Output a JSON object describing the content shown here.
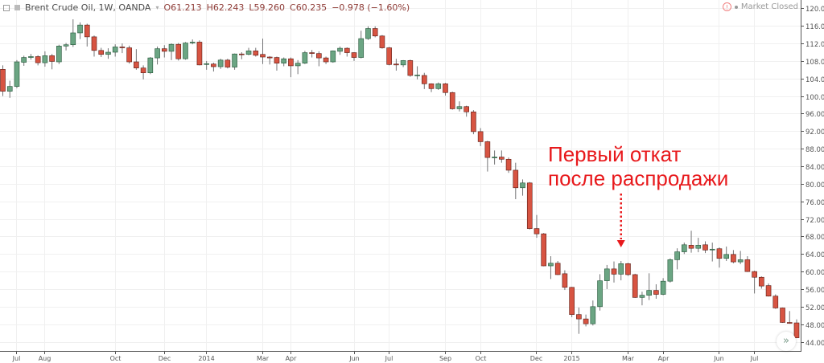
{
  "header": {
    "symbol": "Brent Crude Oil, 1W, OANDA",
    "open": "O61.213",
    "high": "H62.243",
    "low": "L59.260",
    "close": "C60.235",
    "change": "−0.978 (−1.60%)"
  },
  "status": {
    "text": "Market Closed",
    "icon": "warning-icon"
  },
  "annotation": {
    "line1": "Первый откат",
    "line2": "после распродажи",
    "color": "#e8191c"
  },
  "scroll_button": {
    "icon": "double-chevron-right-icon",
    "glyph": "»"
  },
  "colors": {
    "up": "#6ba583",
    "up_border": "#225437",
    "down": "#d75442",
    "down_border": "#5b1a13",
    "wick": "#737375",
    "grid": "#f0f0f0"
  },
  "chart_data": {
    "type": "candlestick",
    "interval": "1W",
    "ylim": [
      41.9,
      121.9
    ],
    "yticks": [
      "44.000",
      "48.000",
      "52.000",
      "56.000",
      "60.000",
      "64.000",
      "68.000",
      "72.000",
      "76.000",
      "80.000",
      "84.000",
      "88.000",
      "92.000",
      "96.000",
      "100.000",
      "104.000",
      "108.000",
      "112.000",
      "116.000",
      "120.000"
    ],
    "xticks": [
      {
        "label": "Jul",
        "date": "2013-07-01"
      },
      {
        "label": "Aug",
        "date": "2013-07-29"
      },
      {
        "label": "Oct",
        "date": "2013-10-07"
      },
      {
        "label": "Dec",
        "date": "2013-11-25"
      },
      {
        "label": "2014",
        "date": "2014-01-06"
      },
      {
        "label": "Mar",
        "date": "2014-03-03"
      },
      {
        "label": "Apr",
        "date": "2014-03-31"
      },
      {
        "label": "Jun",
        "date": "2014-06-02"
      },
      {
        "label": "Jul",
        "date": "2014-07-07"
      },
      {
        "label": "Sep",
        "date": "2014-09-01"
      },
      {
        "label": "Oct",
        "date": "2014-10-06"
      },
      {
        "label": "Dec",
        "date": "2014-12-01"
      },
      {
        "label": "2015",
        "date": "2015-01-05"
      },
      {
        "label": "Mar",
        "date": "2015-03-02"
      },
      {
        "label": "Apr",
        "date": "2015-04-06"
      },
      {
        "label": "Jun",
        "date": "2015-06-01"
      },
      {
        "label": "Jul",
        "date": "2015-07-06"
      }
    ],
    "grid": true,
    "columns": [
      "date",
      "open",
      "high",
      "low",
      "close"
    ],
    "candles": [
      [
        "2013-06-17",
        106.1,
        107.0,
        100.0,
        101.1
      ],
      [
        "2013-06-24",
        101.1,
        103.5,
        99.6,
        102.2
      ],
      [
        "2013-07-01",
        102.2,
        108.2,
        101.8,
        107.8
      ],
      [
        "2013-07-08",
        107.7,
        109.2,
        106.9,
        108.8
      ],
      [
        "2013-07-15",
        108.8,
        109.6,
        108.3,
        109.0
      ],
      [
        "2013-07-22",
        109.0,
        109.3,
        107.0,
        107.6
      ],
      [
        "2013-07-29",
        107.6,
        110.2,
        106.7,
        109.2
      ],
      [
        "2013-08-05",
        109.2,
        109.6,
        106.1,
        107.9
      ],
      [
        "2013-08-12",
        107.8,
        111.7,
        107.3,
        111.4
      ],
      [
        "2013-08-19",
        111.4,
        112.1,
        110.4,
        111.7
      ],
      [
        "2013-08-26",
        111.7,
        117.5,
        111.2,
        114.4
      ],
      [
        "2013-09-02",
        114.4,
        116.8,
        113.0,
        116.2
      ],
      [
        "2013-09-09",
        116.2,
        116.5,
        111.3,
        113.5
      ],
      [
        "2013-09-16",
        113.5,
        113.8,
        109.0,
        110.4
      ],
      [
        "2013-09-23",
        110.4,
        111.0,
        108.9,
        109.5
      ],
      [
        "2013-09-30",
        109.5,
        110.9,
        108.5,
        110.0
      ],
      [
        "2013-10-07",
        110.0,
        111.8,
        109.0,
        111.2
      ],
      [
        "2013-10-14",
        111.2,
        112.0,
        109.8,
        111.0
      ],
      [
        "2013-10-21",
        111.0,
        111.5,
        107.4,
        107.8
      ],
      [
        "2013-10-28",
        107.8,
        110.7,
        106.0,
        106.4
      ],
      [
        "2013-11-04",
        106.4,
        107.0,
        103.8,
        105.3
      ],
      [
        "2013-11-11",
        105.3,
        108.9,
        105.0,
        108.7
      ],
      [
        "2013-11-18",
        108.7,
        111.3,
        107.2,
        110.8
      ],
      [
        "2013-11-25",
        110.8,
        111.6,
        108.8,
        110.2
      ],
      [
        "2013-12-02",
        110.2,
        112.0,
        108.2,
        111.8
      ],
      [
        "2013-12-09",
        111.8,
        112.1,
        108.1,
        108.5
      ],
      [
        "2013-12-16",
        108.5,
        112.3,
        108.3,
        112.1
      ],
      [
        "2013-12-23",
        112.1,
        112.9,
        111.8,
        112.3
      ],
      [
        "2013-12-30",
        112.3,
        112.7,
        107.0,
        107.1
      ],
      [
        "2014-01-06",
        107.2,
        108.0,
        106.0,
        107.4
      ],
      [
        "2014-01-13",
        107.3,
        107.6,
        105.6,
        106.7
      ],
      [
        "2014-01-20",
        106.7,
        108.5,
        106.2,
        108.2
      ],
      [
        "2014-01-27",
        108.2,
        108.5,
        106.3,
        106.6
      ],
      [
        "2014-02-03",
        106.6,
        109.7,
        106.0,
        109.6
      ],
      [
        "2014-02-10",
        109.6,
        110.0,
        108.4,
        109.5
      ],
      [
        "2014-02-17",
        109.5,
        111.0,
        109.3,
        110.3
      ],
      [
        "2014-02-24",
        110.3,
        111.0,
        109.0,
        109.3
      ],
      [
        "2014-03-03",
        109.5,
        113.1,
        107.3,
        108.9
      ],
      [
        "2014-03-10",
        108.9,
        109.1,
        107.2,
        108.7
      ],
      [
        "2014-03-17",
        108.8,
        109.0,
        105.8,
        107.5
      ],
      [
        "2014-03-24",
        107.5,
        108.8,
        106.8,
        108.5
      ],
      [
        "2014-03-31",
        108.5,
        108.8,
        104.3,
        106.9
      ],
      [
        "2014-04-07",
        106.9,
        108.2,
        105.0,
        107.5
      ],
      [
        "2014-04-14",
        107.5,
        110.3,
        107.3,
        109.9
      ],
      [
        "2014-04-21",
        109.9,
        110.5,
        108.8,
        109.7
      ],
      [
        "2014-04-28",
        109.7,
        110.2,
        106.8,
        108.7
      ],
      [
        "2014-05-05",
        108.7,
        109.0,
        107.3,
        107.8
      ],
      [
        "2014-05-12",
        107.8,
        110.4,
        107.6,
        110.3
      ],
      [
        "2014-05-19",
        110.2,
        111.3,
        109.4,
        110.9
      ],
      [
        "2014-05-26",
        110.9,
        111.1,
        109.0,
        109.9
      ],
      [
        "2014-06-02",
        109.9,
        110.0,
        108.0,
        108.8
      ],
      [
        "2014-06-09",
        108.8,
        114.9,
        108.6,
        113.1
      ],
      [
        "2014-06-16",
        113.1,
        115.9,
        112.8,
        115.4
      ],
      [
        "2014-06-23",
        115.4,
        115.9,
        113.4,
        113.7
      ],
      [
        "2014-06-30",
        113.7,
        113.9,
        110.8,
        111.0
      ],
      [
        "2014-07-07",
        111.0,
        111.2,
        107.0,
        107.2
      ],
      [
        "2014-07-14",
        107.3,
        108.5,
        105.8,
        107.1
      ],
      [
        "2014-07-21",
        107.1,
        108.2,
        106.6,
        108.1
      ],
      [
        "2014-07-28",
        108.1,
        108.3,
        104.4,
        104.7
      ],
      [
        "2014-08-04",
        104.7,
        106.8,
        103.8,
        104.8
      ],
      [
        "2014-08-11",
        104.7,
        105.3,
        101.6,
        102.8
      ],
      [
        "2014-08-18",
        102.8,
        102.9,
        100.9,
        101.7
      ],
      [
        "2014-08-25",
        101.7,
        103.1,
        101.4,
        102.8
      ],
      [
        "2014-09-01",
        102.8,
        103.0,
        100.1,
        100.8
      ],
      [
        "2014-09-08",
        100.8,
        101.0,
        96.9,
        97.1
      ],
      [
        "2014-09-15",
        97.1,
        98.8,
        96.5,
        97.6
      ],
      [
        "2014-09-22",
        97.6,
        97.8,
        95.3,
        96.4
      ],
      [
        "2014-09-29",
        96.4,
        96.8,
        91.3,
        91.9
      ],
      [
        "2014-10-06",
        91.9,
        92.7,
        88.6,
        89.6
      ],
      [
        "2014-10-13",
        89.6,
        89.8,
        82.8,
        86.0
      ],
      [
        "2014-10-20",
        85.9,
        87.6,
        84.4,
        86.1
      ],
      [
        "2014-10-27",
        86.1,
        87.6,
        84.8,
        85.6
      ],
      [
        "2014-11-03",
        85.6,
        86.0,
        82.5,
        83.1
      ],
      [
        "2014-11-10",
        83.1,
        84.8,
        76.5,
        79.1
      ],
      [
        "2014-11-17",
        79.1,
        81.0,
        77.3,
        80.2
      ],
      [
        "2014-11-24",
        80.2,
        80.4,
        69.6,
        69.8
      ],
      [
        "2014-12-01",
        69.8,
        72.9,
        67.7,
        68.6
      ],
      [
        "2014-12-08",
        68.6,
        68.8,
        61.2,
        61.3
      ],
      [
        "2014-12-15",
        61.3,
        63.5,
        58.3,
        61.9
      ],
      [
        "2014-12-22",
        61.9,
        62.4,
        59.2,
        59.3
      ],
      [
        "2014-12-29",
        59.5,
        60.3,
        55.8,
        56.4
      ],
      [
        "2015-01-05",
        56.4,
        56.5,
        49.6,
        50.2
      ],
      [
        "2015-01-12",
        50.2,
        51.8,
        45.8,
        49.2
      ],
      [
        "2015-01-19",
        49.2,
        50.2,
        47.5,
        48.1
      ],
      [
        "2015-01-26",
        48.1,
        53.4,
        47.7,
        52.0
      ],
      [
        "2015-02-02",
        52.0,
        59.4,
        51.1,
        57.9
      ],
      [
        "2015-02-09",
        57.9,
        61.5,
        56.0,
        60.6
      ],
      [
        "2015-02-16",
        60.6,
        62.3,
        57.5,
        59.4
      ],
      [
        "2015-02-23",
        59.4,
        62.4,
        58.0,
        61.8
      ],
      [
        "2015-03-02",
        61.8,
        62.0,
        59.0,
        59.3
      ],
      [
        "2015-03-09",
        59.3,
        59.5,
        54.0,
        54.1
      ],
      [
        "2015-03-16",
        54.1,
        55.4,
        52.3,
        54.6
      ],
      [
        "2015-03-23",
        54.6,
        59.6,
        53.5,
        55.7
      ],
      [
        "2015-03-30",
        55.7,
        57.1,
        53.8,
        54.8
      ],
      [
        "2015-04-06",
        54.8,
        58.5,
        54.6,
        57.8
      ],
      [
        "2015-04-13",
        57.8,
        63.0,
        57.5,
        62.7
      ],
      [
        "2015-04-20",
        62.7,
        65.3,
        60.5,
        64.5
      ],
      [
        "2015-04-27",
        64.5,
        66.6,
        64.0,
        66.1
      ],
      [
        "2015-05-04",
        66.0,
        69.3,
        64.3,
        65.3
      ],
      [
        "2015-05-11",
        65.3,
        67.7,
        64.4,
        66.0
      ],
      [
        "2015-05-18",
        66.1,
        66.9,
        64.2,
        64.9
      ],
      [
        "2015-05-25",
        65.0,
        66.6,
        62.3,
        65.1
      ],
      [
        "2015-06-01",
        65.2,
        65.5,
        60.9,
        63.0
      ],
      [
        "2015-06-08",
        63.0,
        65.7,
        62.4,
        63.9
      ],
      [
        "2015-06-15",
        63.9,
        64.9,
        61.9,
        62.2
      ],
      [
        "2015-06-22",
        62.2,
        64.7,
        61.7,
        62.7
      ],
      [
        "2015-06-29",
        62.7,
        63.5,
        59.9,
        60.0
      ],
      [
        "2015-07-06",
        60.0,
        60.2,
        55.0,
        58.7
      ],
      [
        "2015-07-13",
        58.7,
        58.9,
        56.1,
        56.7
      ],
      [
        "2015-07-20",
        56.8,
        57.3,
        54.3,
        54.4
      ],
      [
        "2015-07-27",
        54.4,
        54.8,
        51.5,
        51.7
      ],
      [
        "2015-08-03",
        51.7,
        51.8,
        48.3,
        48.4
      ],
      [
        "2015-08-10",
        48.4,
        51.0,
        48.1,
        48.2
      ],
      [
        "2015-08-17",
        48.3,
        49.1,
        44.8,
        44.9
      ]
    ],
    "annotation_arrow_date": "2015-02-23"
  }
}
